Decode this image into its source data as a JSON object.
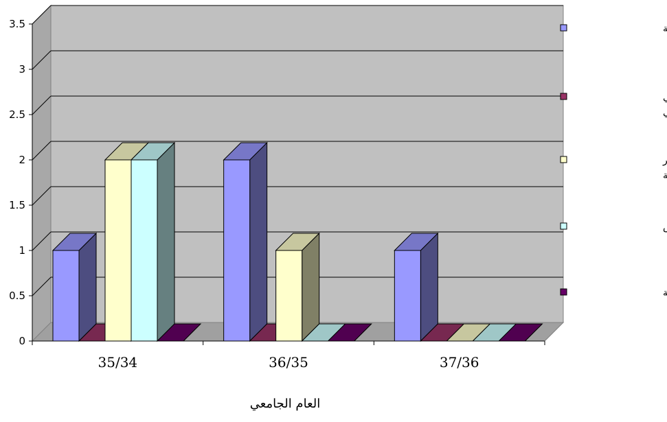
{
  "chart_data": {
    "type": "bar",
    "title": "",
    "xlabel": "العام الجامعي",
    "ylabel": "",
    "categories": [
      "35/34",
      "36/35",
      "37/36"
    ],
    "ylim": [
      0,
      3.5
    ],
    "yticks": [
      "0",
      "0.5",
      "1",
      "1.5",
      "2",
      "2.5",
      "3",
      "3.5"
    ],
    "grid": true,
    "legend_position": "right",
    "style": "3d-clustered-column",
    "series": [
      {
        "name": "علوم المختبرات الطبية",
        "color": "#9999ff",
        "values": [
          1,
          2,
          1
        ]
      },
      {
        "name": "العلاج الطبيعي والتأهيل الصحي",
        "legend_lines": [
          "العلاج الطبيعي",
          "والتأهيل الصحي"
        ],
        "color": "#993366",
        "values": [
          0,
          0,
          0
        ]
      },
      {
        "name": "الأشعة والتصوير الطبية",
        "legend_lines": [
          "الأشعة والتصوير",
          "الطبية"
        ],
        "color": "#ffffcc",
        "values": [
          2,
          1,
          0
        ]
      },
      {
        "name": "التمريض",
        "color": "#ccffff",
        "values": [
          2,
          0,
          0
        ]
      },
      {
        "name": "تقنية الأجهزة الطبية",
        "color": "#660066",
        "values": [
          0,
          0,
          0
        ]
      }
    ],
    "colors": {
      "wall": "#c0c0c0",
      "side_wall": "#a8a8a8",
      "floor": "#a0a0a0",
      "gridline": "#000000"
    }
  }
}
